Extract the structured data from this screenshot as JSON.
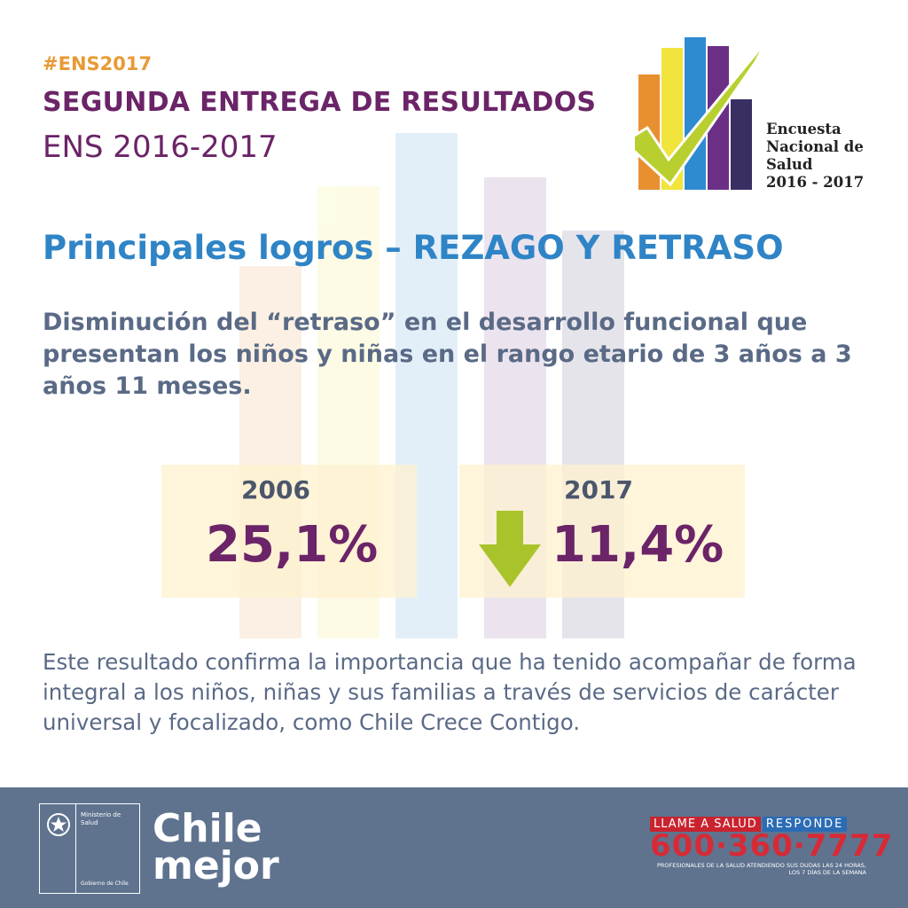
{
  "header": {
    "hashtag": "#ENS2017",
    "title": "SEGUNDA ENTREGA DE RESULTADOS",
    "subtitle": "ENS 2016-2017"
  },
  "logo": {
    "text_lines": [
      "Encuesta",
      "Nacional de",
      "Salud",
      "2016 - 2017"
    ],
    "bar_colors": [
      "#e8902f",
      "#f1e43c",
      "#2f8bd0",
      "#6b2f86",
      "#3a2f63"
    ],
    "check_color": "#b9cf2f"
  },
  "section_title": "Principales logros – REZAGO Y RETRASO",
  "lead_text": "Disminución del “retraso” en el desarrollo funcional que presentan los niños y niñas en el rango etario de 3 años a 3 años 11 meses.",
  "stats": [
    {
      "year": "2006",
      "value": "25,1%"
    },
    {
      "year": "2017",
      "value": "11,4%",
      "trend": "down-arrow-icon"
    }
  ],
  "body_text": "Este resultado confirma la importancia que ha tenido acompañar de forma integral a los niños, niñas y sus familias a través de servicios de carácter universal y focalizado, como Chile Crece Contigo.",
  "footer": {
    "ministry_top": "Ministerio de Salud",
    "ministry_bottom": "Gobierno de Chile",
    "brand_line1": "Chile",
    "brand_line2": "mejor",
    "hotline_label_a": "LLAME A SALUD",
    "hotline_label_b": "RESPONDE",
    "hotline_number": "600·360·7777",
    "hotline_note": "PROFESIONALES DE LA SALUD ATENDIENDO SUS DUDAS LAS 24 HORAS, LOS 7 DÍAS DE LA SEMANA"
  }
}
